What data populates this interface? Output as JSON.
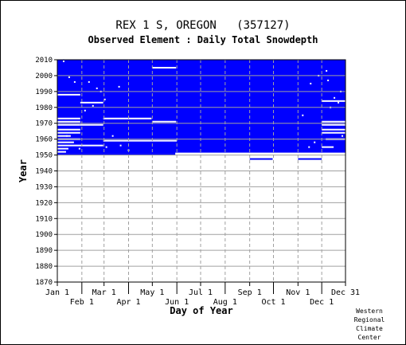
{
  "title": "REX 1 S, OREGON   (357127)",
  "subtitle": "Observed Element : Daily Total Snowdepth",
  "credit": [
    "Western",
    "Regional",
    "Climate",
    "Center"
  ],
  "colors": {
    "data": "#0000ff",
    "axis": "#000000",
    "grid": "#a0a0a0"
  },
  "chart_data": {
    "type": "heatmap",
    "xlabel": "Day of Year",
    "ylabel": "Year",
    "xlim": [
      1,
      365
    ],
    "ylim": [
      1870,
      2010
    ],
    "x_ticks_top_row": [
      {
        "label": "Jan 1",
        "day": 1
      },
      {
        "label": "Mar 1",
        "day": 60
      },
      {
        "label": "May 1",
        "day": 121
      },
      {
        "label": "Jul 1",
        "day": 182
      },
      {
        "label": "Sep 1",
        "day": 244
      },
      {
        "label": "Nov 1",
        "day": 305
      },
      {
        "label": "Dec 31",
        "day": 365
      }
    ],
    "x_ticks_bottom_row": [
      {
        "label": "Feb 1",
        "day": 32
      },
      {
        "label": "Apr 1",
        "day": 91
      },
      {
        "label": "Jun 1",
        "day": 152
      },
      {
        "label": "Aug 1",
        "day": 213
      },
      {
        "label": "Oct 1",
        "day": 274
      },
      {
        "label": "Dec 1",
        "day": 335
      }
    ],
    "y_ticks": [
      1870,
      1880,
      1890,
      1900,
      1910,
      1920,
      1930,
      1940,
      1950,
      1960,
      1970,
      1980,
      1990,
      2000,
      2010
    ],
    "grid": true,
    "record_period": [
      1951,
      2010
    ],
    "observed_blocks": [
      {
        "year_start": 1951,
        "year_end": 2010,
        "day_start": 1,
        "day_end": 365
      },
      {
        "year_start": 1950,
        "year_end": 1951,
        "day_start": 1,
        "day_end": 150
      },
      {
        "year_start": 1947,
        "year_end": 1948,
        "day_start": 244,
        "day_end": 273
      },
      {
        "year_start": 1947,
        "year_end": 1948,
        "day_start": 305,
        "day_end": 335
      }
    ],
    "missing_segments": [
      {
        "year": 1988,
        "day_start": 1,
        "day_end": 30
      },
      {
        "year": 1983,
        "day_start": 30,
        "day_end": 59
      },
      {
        "year": 1973,
        "day_start": 1,
        "day_end": 30
      },
      {
        "year": 1973,
        "day_start": 59,
        "day_end": 120
      },
      {
        "year": 1971,
        "day_start": 1,
        "day_end": 30
      },
      {
        "year": 1971,
        "day_start": 121,
        "day_end": 151
      },
      {
        "year": 1969,
        "day_start": 1,
        "day_end": 30
      },
      {
        "year": 1969,
        "day_start": 30,
        "day_end": 59
      },
      {
        "year": 1966,
        "day_start": 1,
        "day_end": 30
      },
      {
        "year": 1964,
        "day_start": 1,
        "day_end": 30
      },
      {
        "year": 1962,
        "day_start": 1,
        "day_end": 18
      },
      {
        "year": 1960,
        "day_start": 1,
        "day_end": 30
      },
      {
        "year": 1959,
        "day_start": 59,
        "day_end": 152
      },
      {
        "year": 1958,
        "day_start": 1,
        "day_end": 22
      },
      {
        "year": 1956,
        "day_start": 1,
        "day_end": 59
      },
      {
        "year": 1954,
        "day_start": 1,
        "day_end": 15
      },
      {
        "year": 1952,
        "day_start": 1,
        "day_end": 12
      },
      {
        "year": 2005,
        "day_start": 121,
        "day_end": 151
      },
      {
        "year": 1984,
        "day_start": 335,
        "day_end": 365
      },
      {
        "year": 1971,
        "day_start": 335,
        "day_end": 365
      },
      {
        "year": 1969,
        "day_start": 335,
        "day_end": 365
      },
      {
        "year": 1966,
        "day_start": 335,
        "day_end": 365
      },
      {
        "year": 1964,
        "day_start": 335,
        "day_end": 365
      },
      {
        "year": 1960,
        "day_start": 340,
        "day_end": 365
      },
      {
        "year": 1955,
        "day_start": 335,
        "day_end": 350
      },
      {
        "year": 1951,
        "day_start": 150,
        "day_end": 365
      }
    ],
    "missing_dots": [
      [
        8,
        2009
      ],
      [
        15,
        1999
      ],
      [
        22,
        1996
      ],
      [
        40,
        1996
      ],
      [
        50,
        1992
      ],
      [
        55,
        1990
      ],
      [
        78,
        1993
      ],
      [
        60,
        1985
      ],
      [
        35,
        1978
      ],
      [
        12,
        1962
      ],
      [
        70,
        1962
      ],
      [
        62,
        1955
      ],
      [
        80,
        1956
      ],
      [
        28,
        1954
      ],
      [
        90,
        1953
      ],
      [
        45,
        1981
      ],
      [
        320,
        1995
      ],
      [
        330,
        2000
      ],
      [
        340,
        2003
      ],
      [
        345,
        1980
      ],
      [
        350,
        1986
      ],
      [
        358,
        1990
      ],
      [
        310,
        1975
      ],
      [
        318,
        1955
      ],
      [
        325,
        1958
      ],
      [
        360,
        1962
      ],
      [
        355,
        1983
      ],
      [
        342,
        1997
      ]
    ]
  }
}
